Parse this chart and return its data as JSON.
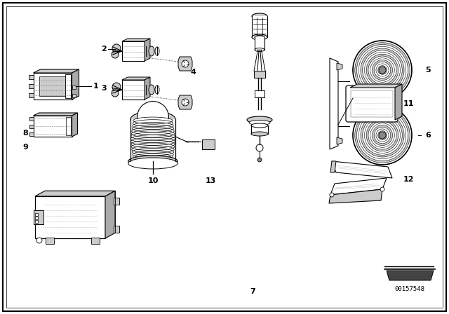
{
  "bg_color": "#ffffff",
  "line_color": "#000000",
  "diagram_id": "00157548",
  "gray1": "#aaaaaa",
  "gray2": "#cccccc",
  "gray3": "#888888",
  "gray4": "#444444"
}
